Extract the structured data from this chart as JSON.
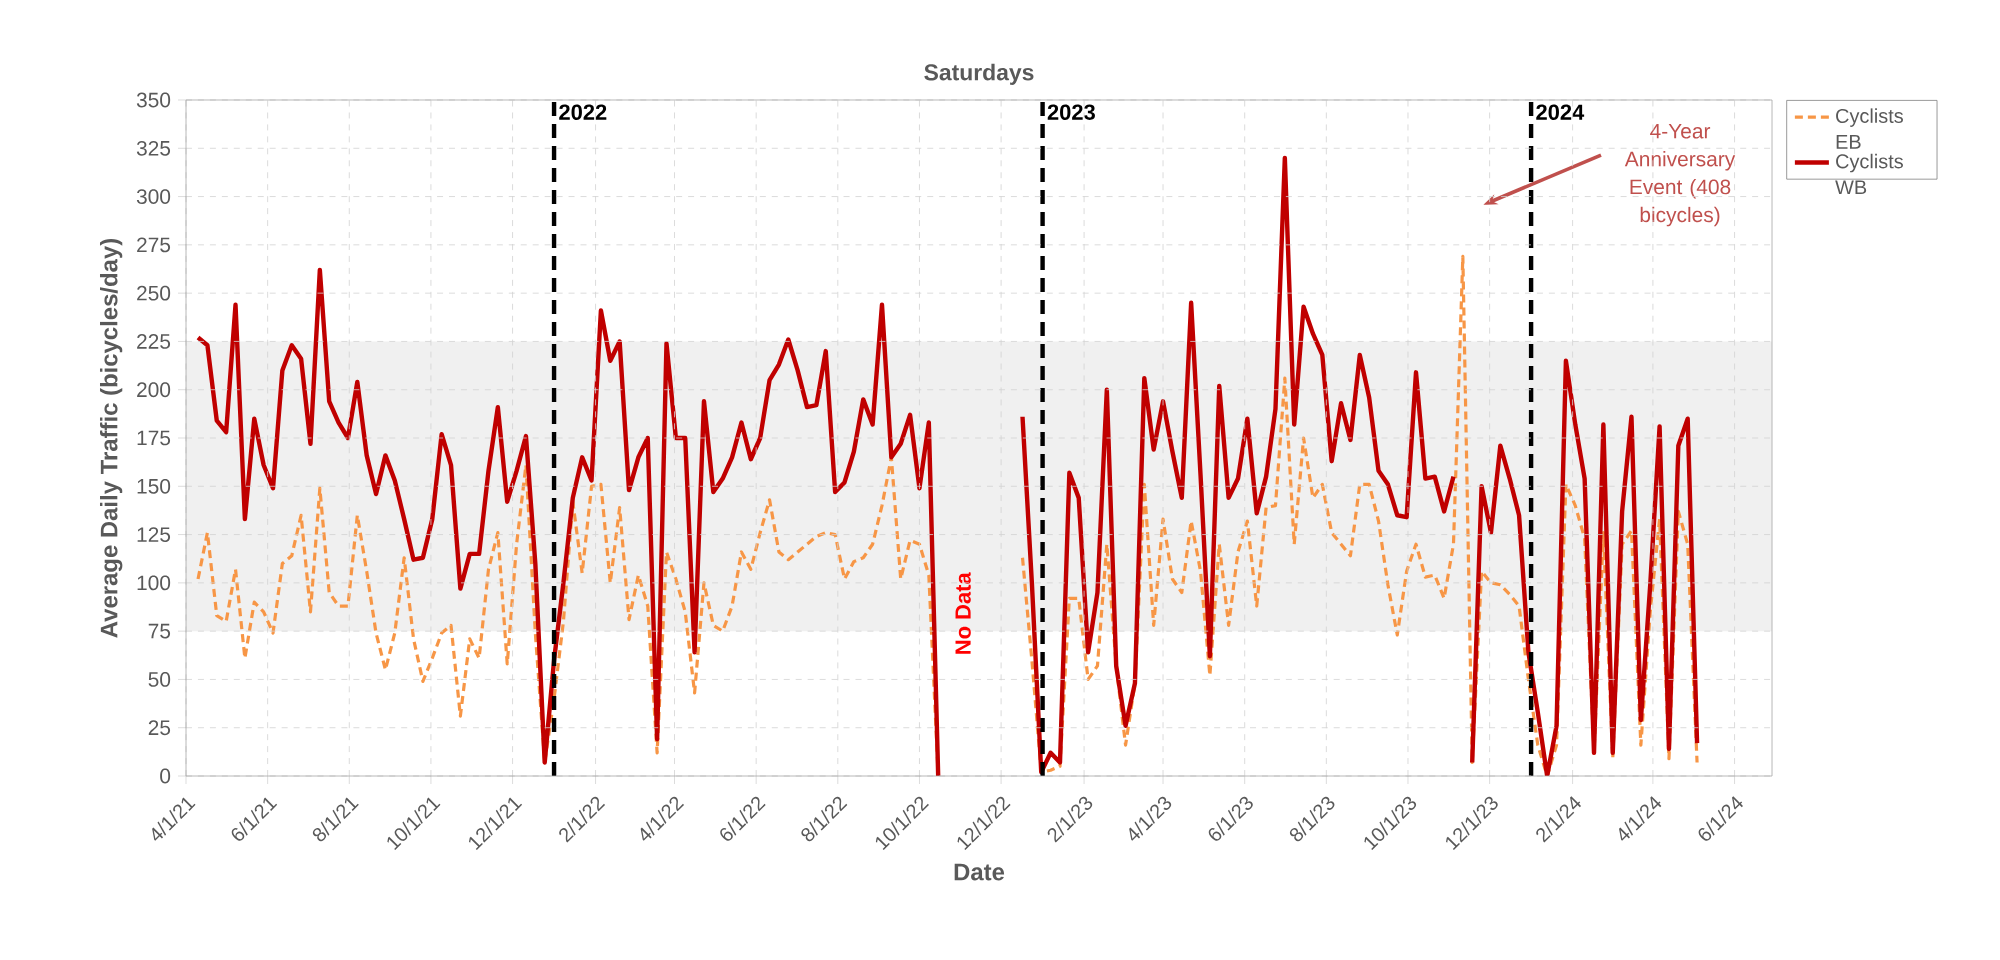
{
  "chart_data": {
    "type": "line",
    "title": "Saturdays",
    "xlabel": "Date",
    "ylabel": "Average Daily Traffic (bicycles/day)",
    "x": [
      "2021-04-10",
      "2021-04-17",
      "2021-04-24",
      "2021-05-01",
      "2021-05-08",
      "2021-05-15",
      "2021-05-22",
      "2021-05-29",
      "2021-06-05",
      "2021-06-12",
      "2021-06-19",
      "2021-06-26",
      "2021-07-03",
      "2021-07-10",
      "2021-07-17",
      "2021-07-24",
      "2021-07-31",
      "2021-08-07",
      "2021-08-14",
      "2021-08-21",
      "2021-08-28",
      "2021-09-04",
      "2021-09-11",
      "2021-09-18",
      "2021-09-25",
      "2021-10-02",
      "2021-10-09",
      "2021-10-16",
      "2021-10-23",
      "2021-10-30",
      "2021-11-06",
      "2021-11-13",
      "2021-11-20",
      "2021-11-27",
      "2021-12-04",
      "2021-12-11",
      "2021-12-18",
      "2021-12-25",
      "2022-01-01",
      "2022-01-08",
      "2022-01-15",
      "2022-01-22",
      "2022-01-29",
      "2022-02-05",
      "2022-02-12",
      "2022-02-19",
      "2022-02-26",
      "2022-03-05",
      "2022-03-12",
      "2022-03-19",
      "2022-03-26",
      "2022-04-02",
      "2022-04-09",
      "2022-04-16",
      "2022-04-23",
      "2022-04-30",
      "2022-05-07",
      "2022-05-14",
      "2022-05-21",
      "2022-05-28",
      "2022-06-04",
      "2022-06-11",
      "2022-06-18",
      "2022-06-25",
      "2022-07-02",
      "2022-07-09",
      "2022-07-16",
      "2022-07-23",
      "2022-07-30",
      "2022-08-06",
      "2022-08-13",
      "2022-08-20",
      "2022-08-27",
      "2022-09-03",
      "2022-09-10",
      "2022-09-17",
      "2022-09-24",
      "2022-10-01",
      "2022-10-08",
      "2022-10-15",
      "2022-10-22",
      "2022-10-29",
      "2022-11-05",
      "2022-11-12",
      "2022-11-19",
      "2022-11-26",
      "2022-12-03",
      "2022-12-10",
      "2022-12-17",
      "2022-12-24",
      "2022-12-31",
      "2023-01-07",
      "2023-01-14",
      "2023-01-21",
      "2023-01-28",
      "2023-02-04",
      "2023-02-11",
      "2023-02-18",
      "2023-02-25",
      "2023-03-04",
      "2023-03-11",
      "2023-03-18",
      "2023-03-25",
      "2023-04-01",
      "2023-04-08",
      "2023-04-15",
      "2023-04-22",
      "2023-04-29",
      "2023-05-06",
      "2023-05-13",
      "2023-05-20",
      "2023-05-27",
      "2023-06-03",
      "2023-06-10",
      "2023-06-17",
      "2023-06-24",
      "2023-07-01",
      "2023-07-08",
      "2023-07-15",
      "2023-07-22",
      "2023-07-29",
      "2023-08-05",
      "2023-08-12",
      "2023-08-19",
      "2023-08-26",
      "2023-09-02",
      "2023-09-09",
      "2023-09-16",
      "2023-09-23",
      "2023-09-30",
      "2023-10-07",
      "2023-10-14",
      "2023-10-21",
      "2023-10-28",
      "2023-11-04",
      "2023-11-11",
      "2023-11-18",
      "2023-11-25",
      "2023-12-02",
      "2023-12-09",
      "2023-12-16",
      "2023-12-23",
      "2023-12-30",
      "2024-01-06",
      "2024-01-13",
      "2024-01-20",
      "2024-01-27",
      "2024-02-03",
      "2024-02-10",
      "2024-02-17",
      "2024-02-24",
      "2024-03-02",
      "2024-03-09",
      "2024-03-16",
      "2024-03-23",
      "2024-03-30",
      "2024-04-06",
      "2024-04-13",
      "2024-04-20",
      "2024-04-27",
      "2024-05-04"
    ],
    "series": [
      {
        "name": "Cyclists EB",
        "color": "#f79646",
        "line_style": "dashed",
        "values": [
          102,
          126,
          83,
          80,
          107,
          61,
          90,
          85,
          74,
          110,
          114,
          135,
          85,
          149,
          95,
          88,
          88,
          135,
          106,
          74,
          55,
          74,
          113,
          71,
          49,
          61,
          74,
          78,
          31,
          71,
          61,
          107,
          126,
          58,
          120,
          161,
          74,
          7,
          40,
          80,
          142,
          105,
          150,
          151,
          100,
          139,
          81,
          104,
          88,
          12,
          116,
          102,
          85,
          43,
          100,
          78,
          75,
          88,
          116,
          107,
          126,
          143,
          116,
          112,
          116,
          120,
          124,
          126,
          125,
          102,
          111,
          113,
          120,
          140,
          165,
          102,
          122,
          120,
          104,
          0,
          null,
          null,
          null,
          null,
          null,
          null,
          null,
          null,
          113,
          60,
          2,
          3,
          5,
          92,
          92,
          50,
          57,
          120,
          57,
          16,
          48,
          151,
          78,
          133,
          102,
          95,
          132,
          106,
          52,
          120,
          78,
          116,
          132,
          88,
          139,
          140,
          206,
          120,
          175,
          144,
          151,
          126,
          120,
          114,
          151,
          151,
          132,
          99,
          73,
          106,
          120,
          103,
          104,
          92,
          120,
          269,
          7,
          106,
          100,
          99,
          94,
          88,
          50,
          16,
          0,
          16,
          151,
          140,
          123,
          12,
          126,
          9,
          120,
          127,
          16,
          85,
          133,
          9,
          137,
          120,
          7
        ]
      },
      {
        "name": "Cyclists WB",
        "color": "#c00000",
        "line_style": "solid",
        "values": [
          227,
          223,
          184,
          178,
          244,
          133,
          185,
          161,
          149,
          210,
          223,
          216,
          172,
          262,
          194,
          183,
          175,
          204,
          166,
          146,
          166,
          153,
          133,
          112,
          113,
          133,
          177,
          161,
          97,
          115,
          115,
          158,
          191,
          142,
          158,
          176,
          110,
          7,
          60,
          100,
          144,
          165,
          153,
          241,
          215,
          225,
          148,
          165,
          175,
          19,
          224,
          175,
          175,
          64,
          194,
          147,
          154,
          165,
          183,
          164,
          175,
          205,
          213,
          226,
          210,
          191,
          192,
          220,
          147,
          152,
          168,
          195,
          182,
          244,
          165,
          172,
          187,
          149,
          183,
          0,
          null,
          null,
          null,
          null,
          null,
          null,
          null,
          null,
          186,
          100,
          2,
          12,
          7,
          157,
          144,
          64,
          95,
          200,
          57,
          26,
          48,
          206,
          169,
          194,
          168,
          144,
          245,
          156,
          62,
          202,
          144,
          154,
          185,
          136,
          155,
          190,
          320,
          182,
          243,
          229,
          218,
          163,
          193,
          174,
          218,
          196,
          158,
          151,
          135,
          134,
          209,
          154,
          155,
          137,
          155,
          null,
          7,
          150,
          126,
          171,
          154,
          135,
          64,
          33,
          0,
          26,
          215,
          182,
          154,
          12,
          182,
          12,
          137,
          186,
          29,
          99,
          181,
          14,
          171,
          185,
          17
        ]
      }
    ],
    "xlim": [
      "2021-04-01",
      "2024-06-29"
    ],
    "xticks": [
      {
        "value": "2021-04-01",
        "label": "4/1/21"
      },
      {
        "value": "2021-06-01",
        "label": "6/1/21"
      },
      {
        "value": "2021-08-01",
        "label": "8/1/21"
      },
      {
        "value": "2021-10-01",
        "label": "10/1/21"
      },
      {
        "value": "2021-12-01",
        "label": "12/1/21"
      },
      {
        "value": "2022-02-01",
        "label": "2/1/22"
      },
      {
        "value": "2022-04-01",
        "label": "4/1/22"
      },
      {
        "value": "2022-06-01",
        "label": "6/1/22"
      },
      {
        "value": "2022-08-01",
        "label": "8/1/22"
      },
      {
        "value": "2022-10-01",
        "label": "10/1/22"
      },
      {
        "value": "2022-12-01",
        "label": "12/1/22"
      },
      {
        "value": "2023-02-01",
        "label": "2/1/23"
      },
      {
        "value": "2023-04-01",
        "label": "4/1/23"
      },
      {
        "value": "2023-06-01",
        "label": "6/1/23"
      },
      {
        "value": "2023-08-01",
        "label": "8/1/23"
      },
      {
        "value": "2023-10-01",
        "label": "10/1/23"
      },
      {
        "value": "2023-12-01",
        "label": "12/1/23"
      },
      {
        "value": "2024-02-01",
        "label": "2/1/24"
      },
      {
        "value": "2024-04-01",
        "label": "4/1/24"
      },
      {
        "value": "2024-06-01",
        "label": "6/1/24"
      }
    ],
    "ylim": [
      0,
      350
    ],
    "yticks": [
      0,
      25,
      50,
      75,
      100,
      125,
      150,
      175,
      200,
      225,
      250,
      275,
      300,
      325,
      350
    ],
    "grid": true,
    "legend": "right",
    "marker": "none",
    "ref_lines": [
      {
        "axis": "x",
        "value": "2022-01-01",
        "label": "2022",
        "color": "#000000",
        "line_style": "dashed"
      },
      {
        "axis": "x",
        "value": "2023-01-01",
        "label": "2023",
        "color": "#000000",
        "line_style": "dashed"
      },
      {
        "axis": "x",
        "value": "2024-01-01",
        "label": "2024",
        "color": "#000000",
        "line_style": "dashed"
      }
    ],
    "bands": [
      {
        "axis": "y",
        "from": 75,
        "to": 225,
        "color": "#f0f0f0"
      }
    ],
    "annotations": [
      "No Data",
      "4-Year Anniversary Event (408 bicycles)"
    ]
  }
}
